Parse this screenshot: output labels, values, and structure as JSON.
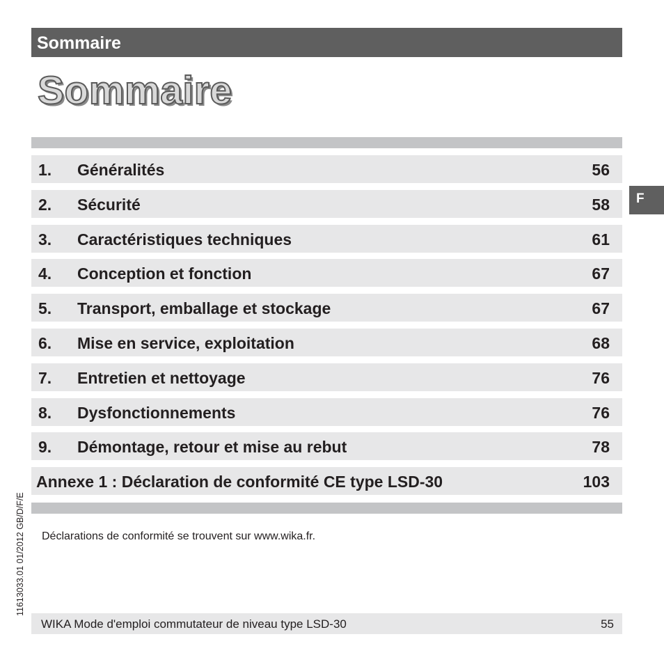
{
  "header": {
    "title": "Sommaire"
  },
  "main_title": "Sommaire",
  "toc": [
    {
      "num": "1.",
      "label": "Généralités",
      "page": "56"
    },
    {
      "num": "2.",
      "label": "Sécurité",
      "page": "58"
    },
    {
      "num": "3.",
      "label": "Caractéristiques techniques",
      "page": "61"
    },
    {
      "num": "4.",
      "label": "Conception et fonction",
      "page": "67"
    },
    {
      "num": "5.",
      "label": "Transport, emballage et stockage",
      "page": "67"
    },
    {
      "num": "6.",
      "label": "Mise en service, exploitation",
      "page": "68"
    },
    {
      "num": "7.",
      "label": "Entretien et nettoyage",
      "page": "76"
    },
    {
      "num": "8.",
      "label": "Dysfonctionnements",
      "page": "76"
    },
    {
      "num": "9.",
      "label": "Démontage, retour et mise au rebut",
      "page": "78"
    }
  ],
  "annex": {
    "label": "Annexe 1 : Déclaration de conformité CE type LSD-30",
    "page": "103"
  },
  "side_tab": "F",
  "vertical_code": "11613033.01 01/2012 GB/D/F/E",
  "note": "Déclarations de conformité se trouvent sur www.wika.fr.",
  "footer": {
    "text": "WIKA Mode d'emploi commutateur de niveau type LSD-30",
    "page": "55"
  },
  "colors": {
    "header_bg": "#5f5f5f",
    "row_bg": "#e7e7e8",
    "rule_bg": "#c3c4c6"
  }
}
